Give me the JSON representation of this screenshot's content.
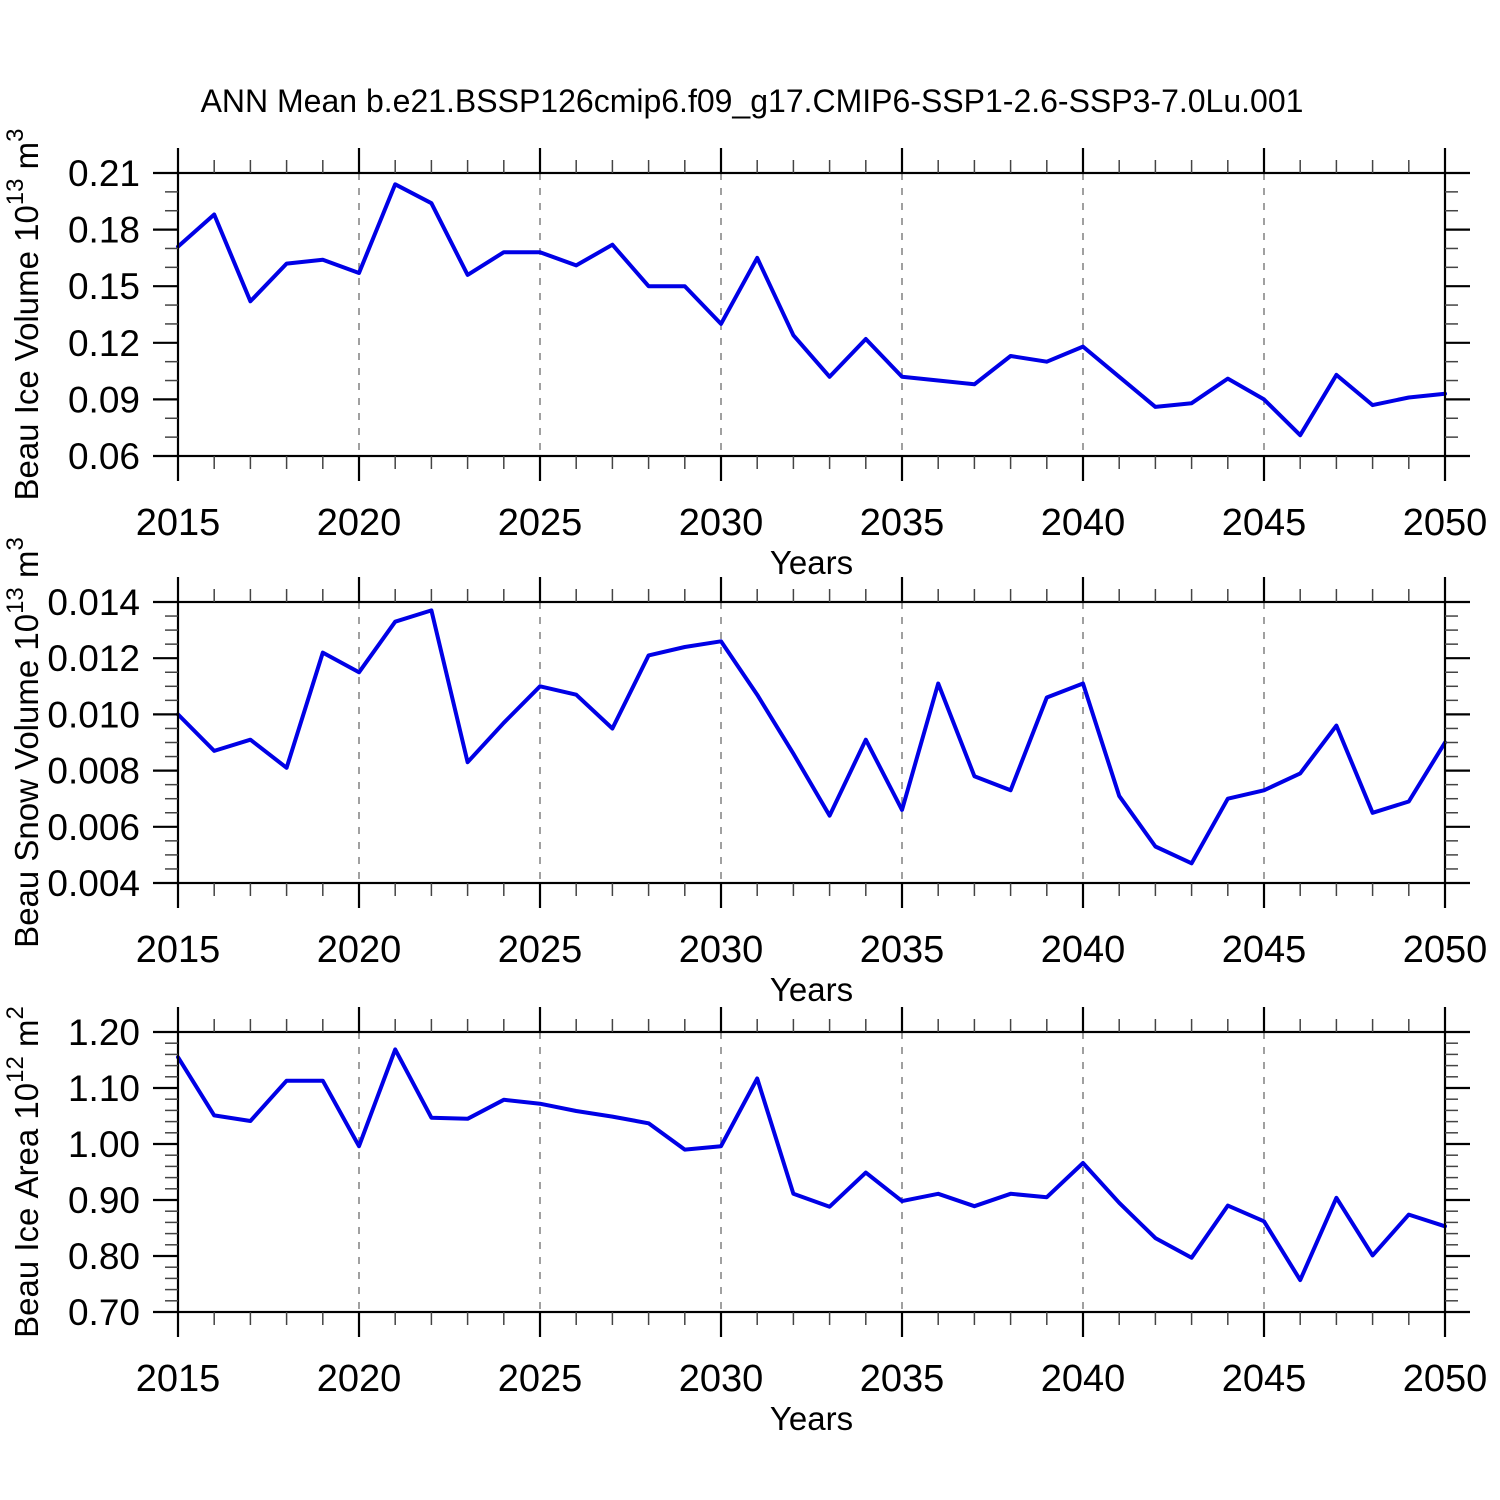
{
  "title": "ANN Mean b.e21.BSSP126cmip6.f09_g17.CMIP6-SSP1-2.6-SSP3-7.0Lu.001",
  "colors": {
    "line": "#0000e6",
    "grid": "#888888",
    "axis": "#000000",
    "background": "#ffffff",
    "text": "#000000"
  },
  "x_axis": {
    "label": "Years",
    "tick_labels": [
      "2015",
      "2020",
      "2025",
      "2030",
      "2035",
      "2040",
      "2045",
      "2050"
    ],
    "major_step": 5,
    "minor_step": 1
  },
  "chart_data": [
    {
      "id": "beau-ice-volume",
      "type": "line",
      "ylabel": "Beau Ice Volume 10^13 m^3",
      "ylabel_segments": [
        {
          "t": "Beau Ice Volume 10",
          "sup": false
        },
        {
          "t": "13",
          "sup": true
        },
        {
          "t": " m",
          "sup": false
        },
        {
          "t": "3",
          "sup": true
        }
      ],
      "xlabel": "Years",
      "xlim": [
        2015,
        2050
      ],
      "ylim": [
        0.06,
        0.21
      ],
      "ytick_labels": [
        "0.21",
        "0.18",
        "0.15",
        "0.12",
        "0.09",
        "0.06"
      ],
      "y_minor_per_major": 2,
      "grid": "vertical-dashed-every-5-years",
      "legend": "none",
      "x": [
        2015,
        2016,
        2017,
        2018,
        2019,
        2020,
        2021,
        2022,
        2023,
        2024,
        2025,
        2026,
        2027,
        2028,
        2029,
        2030,
        2031,
        2032,
        2033,
        2034,
        2035,
        2036,
        2037,
        2038,
        2039,
        2040,
        2041,
        2042,
        2043,
        2044,
        2045,
        2046,
        2047,
        2048,
        2049,
        2050
      ],
      "values": [
        0.171,
        0.188,
        0.142,
        0.162,
        0.164,
        0.157,
        0.204,
        0.194,
        0.156,
        0.168,
        0.168,
        0.161,
        0.172,
        0.15,
        0.15,
        0.13,
        0.165,
        0.124,
        0.102,
        0.122,
        0.102,
        0.1,
        0.098,
        0.113,
        0.11,
        0.118,
        0.102,
        0.086,
        0.088,
        0.101,
        0.09,
        0.071,
        0.103,
        0.087,
        0.091,
        0.093
      ]
    },
    {
      "id": "beau-snow-volume",
      "type": "line",
      "ylabel": "Beau Snow Volume 10^13 m^3",
      "ylabel_segments": [
        {
          "t": "Beau Snow Volume 10",
          "sup": false
        },
        {
          "t": "13",
          "sup": true
        },
        {
          "t": " m",
          "sup": false
        },
        {
          "t": "3",
          "sup": true
        }
      ],
      "xlabel": "Years",
      "xlim": [
        2015,
        2050
      ],
      "ylim": [
        0.004,
        0.014
      ],
      "ytick_labels": [
        "0.014",
        "0.012",
        "0.010",
        "0.008",
        "0.006",
        "0.004"
      ],
      "y_minor_per_major": 3,
      "grid": "vertical-dashed-every-5-years",
      "legend": "none",
      "x": [
        2015,
        2016,
        2017,
        2018,
        2019,
        2020,
        2021,
        2022,
        2023,
        2024,
        2025,
        2026,
        2027,
        2028,
        2029,
        2030,
        2031,
        2032,
        2033,
        2034,
        2035,
        2036,
        2037,
        2038,
        2039,
        2040,
        2041,
        2042,
        2043,
        2044,
        2045,
        2046,
        2047,
        2048,
        2049,
        2050
      ],
      "values": [
        0.01,
        0.0087,
        0.0091,
        0.0081,
        0.0122,
        0.0115,
        0.0133,
        0.0137,
        0.0083,
        0.0097,
        0.011,
        0.0107,
        0.0095,
        0.0121,
        0.0124,
        0.0126,
        0.0107,
        0.0086,
        0.0064,
        0.0091,
        0.0066,
        0.0111,
        0.0078,
        0.0073,
        0.0106,
        0.0111,
        0.0071,
        0.0053,
        0.0047,
        0.007,
        0.0073,
        0.0079,
        0.0096,
        0.0065,
        0.0069,
        0.009
      ]
    },
    {
      "id": "beau-ice-area",
      "type": "line",
      "ylabel": "Beau Ice Area 10^12 m^2",
      "ylabel_segments": [
        {
          "t": "Beau Ice Area 10",
          "sup": false
        },
        {
          "t": "12",
          "sup": true
        },
        {
          "t": " m",
          "sup": false
        },
        {
          "t": "2",
          "sup": true
        }
      ],
      "xlabel": "Years",
      "xlim": [
        2015,
        2050
      ],
      "ylim": [
        0.7,
        1.2
      ],
      "ytick_labels": [
        "1.20",
        "1.10",
        "1.00",
        "0.90",
        "0.80",
        "0.70"
      ],
      "y_minor_per_major": 4,
      "grid": "vertical-dashed-every-5-years",
      "legend": "none",
      "x": [
        2015,
        2016,
        2017,
        2018,
        2019,
        2020,
        2021,
        2022,
        2023,
        2024,
        2025,
        2026,
        2027,
        2028,
        2029,
        2030,
        2031,
        2032,
        2033,
        2034,
        2035,
        2036,
        2037,
        2038,
        2039,
        2040,
        2041,
        2042,
        2043,
        2044,
        2045,
        2046,
        2047,
        2048,
        2049,
        2050
      ],
      "values": [
        1.155,
        1.051,
        1.041,
        1.113,
        1.113,
        0.996,
        1.169,
        1.047,
        1.045,
        1.079,
        1.072,
        1.059,
        1.049,
        1.037,
        0.99,
        0.996,
        1.117,
        0.911,
        0.888,
        0.949,
        0.898,
        0.911,
        0.889,
        0.911,
        0.905,
        0.966,
        0.895,
        0.832,
        0.797,
        0.89,
        0.862,
        0.757,
        0.904,
        0.801,
        0.874,
        0.853
      ]
    }
  ]
}
